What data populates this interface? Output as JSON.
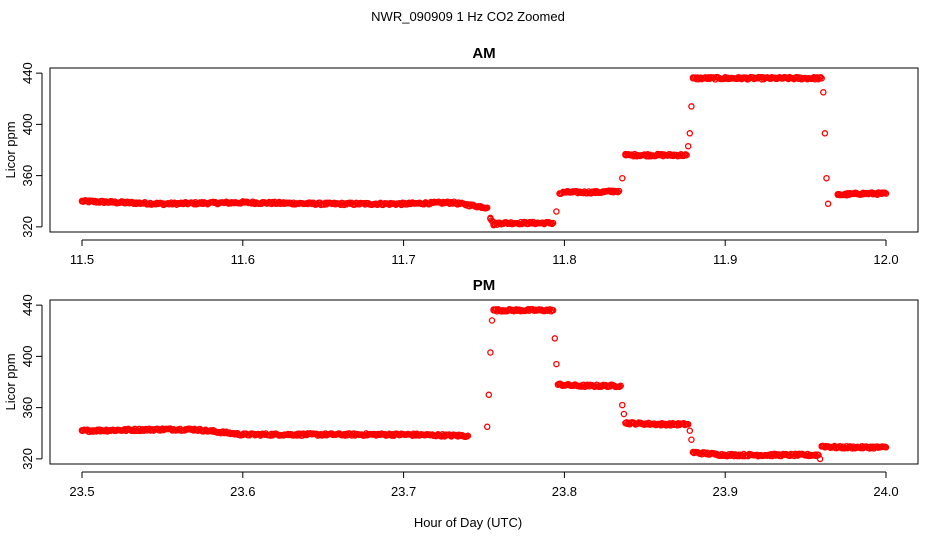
{
  "title": "NWR_090909  1 Hz CO2 Zoomed",
  "xlabel": "Hour of Day (UTC)",
  "colors": {
    "points": "#ff0000",
    "axes": "#000000"
  },
  "chart_data": [
    {
      "type": "scatter",
      "title": "AM",
      "xlabel": "",
      "ylabel": "Licor ppm",
      "xlim": [
        11.5,
        12.0
      ],
      "ylim": [
        316,
        444
      ],
      "xticks": [
        "11.5",
        "11.6",
        "11.7",
        "11.8",
        "11.9",
        "12.0"
      ],
      "yticks": [
        "320",
        "360",
        "400",
        "440"
      ],
      "series": [
        {
          "marker": "open-circle",
          "x": [
            11.5,
            11.55,
            11.6,
            11.65,
            11.7,
            11.73,
            11.752,
            11.754,
            11.756,
            11.76,
            11.775,
            11.793,
            11.795,
            11.797,
            11.8,
            11.82,
            11.834,
            11.836,
            11.838,
            11.845,
            11.86,
            11.876,
            11.877,
            11.878,
            11.879,
            11.88,
            11.9,
            11.92,
            11.94,
            11.96,
            11.961,
            11.962,
            11.963,
            11.964,
            11.97,
            11.985,
            12.0
          ],
          "y": [
            340,
            338,
            339,
            338,
            338,
            339,
            335,
            327,
            322,
            323,
            323,
            323,
            332,
            346,
            347,
            347,
            348,
            358,
            376,
            376,
            376,
            376,
            383,
            393,
            414,
            436,
            436,
            436,
            436,
            436,
            425,
            393,
            358,
            338,
            345,
            346,
            346
          ]
        }
      ]
    },
    {
      "type": "scatter",
      "title": "PM",
      "xlabel": "Hour of Day (UTC)",
      "ylabel": "Licor ppm",
      "xlim": [
        23.5,
        24.0
      ],
      "ylim": [
        316,
        444
      ],
      "xticks": [
        "23.5",
        "23.6",
        "23.7",
        "23.8",
        "23.9",
        "24.0"
      ],
      "yticks": [
        "320",
        "360",
        "400",
        "440"
      ],
      "series": [
        {
          "marker": "open-circle",
          "x": [
            23.5,
            23.55,
            23.57,
            23.6,
            23.65,
            23.7,
            23.74,
            23.752,
            23.753,
            23.754,
            23.755,
            23.756,
            23.77,
            23.793,
            23.794,
            23.795,
            23.796,
            23.81,
            23.835,
            23.836,
            23.837,
            23.838,
            23.86,
            23.877,
            23.878,
            23.879,
            23.88,
            23.9,
            23.93,
            23.958,
            23.959,
            23.96,
            23.97,
            24.0
          ],
          "y": [
            342,
            343,
            343,
            339,
            339,
            339,
            338,
            345,
            370,
            403,
            428,
            436,
            436,
            436,
            414,
            394,
            378,
            377,
            377,
            362,
            355,
            348,
            347,
            347,
            342,
            335,
            325,
            323,
            323,
            323,
            320,
            330,
            329,
            329
          ]
        }
      ]
    }
  ]
}
